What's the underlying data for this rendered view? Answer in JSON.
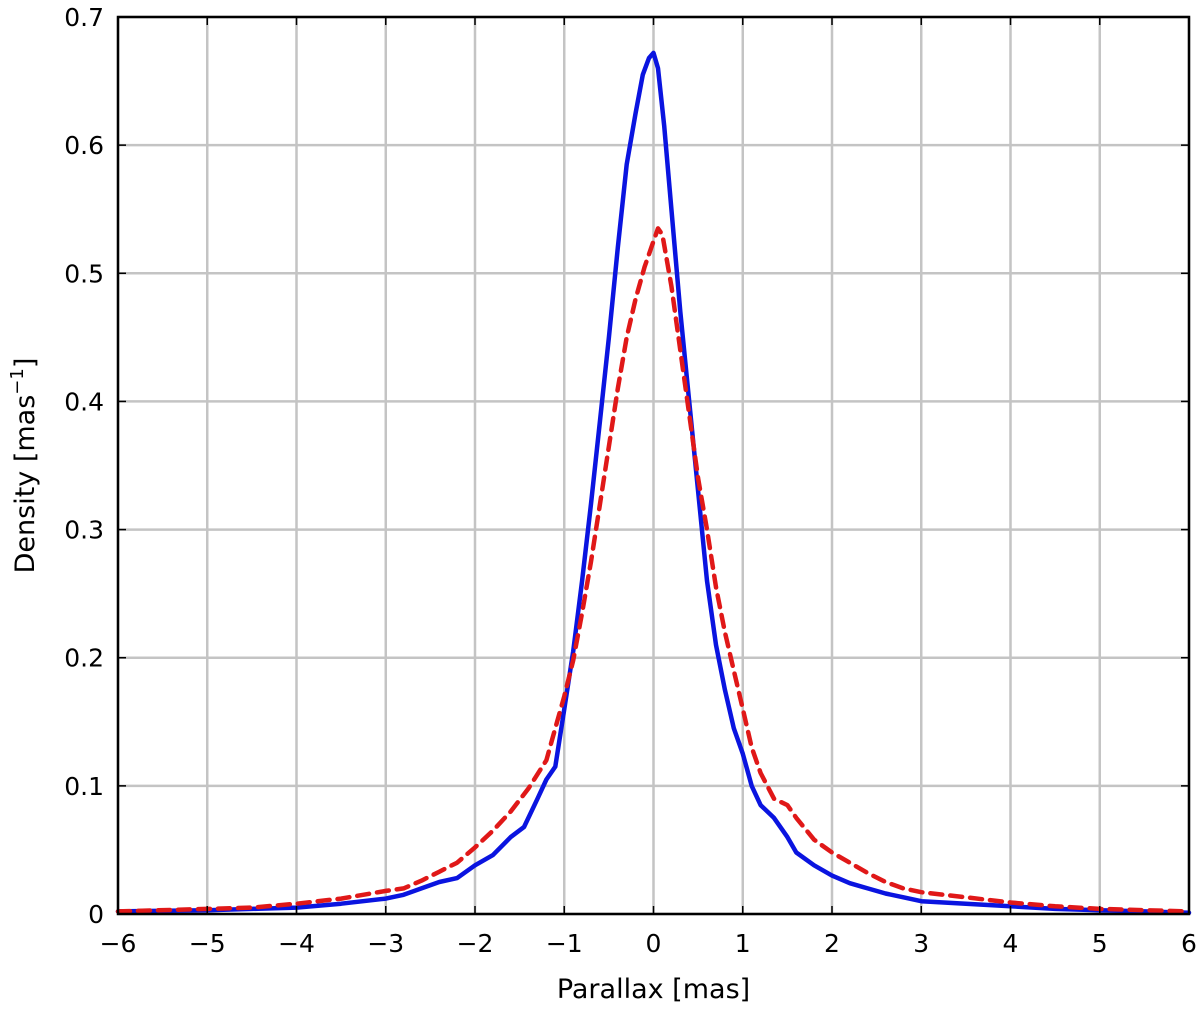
{
  "chart_data": {
    "type": "line",
    "xlabel": "Parallax [mas]",
    "ylabel": "Density [mas",
    "ylabel_superscript": "−1",
    "ylabel_suffix": "]",
    "xlim": [
      -6,
      6
    ],
    "ylim": [
      0,
      0.7
    ],
    "grid": true,
    "x_ticks": [
      -6,
      -5,
      -4,
      -3,
      -2,
      -1,
      0,
      1,
      2,
      3,
      4,
      5,
      6
    ],
    "x_tick_labels": [
      "−6",
      "−5",
      "−4",
      "−3",
      "−2",
      "−1",
      "0",
      "1",
      "2",
      "3",
      "4",
      "5",
      "6"
    ],
    "y_ticks": [
      0,
      0.1,
      0.2,
      0.3,
      0.4,
      0.5,
      0.6,
      0.7
    ],
    "y_tick_labels": [
      "0",
      "0.1",
      "0.2",
      "0.3",
      "0.4",
      "0.5",
      "0.6",
      "0.7"
    ],
    "series": [
      {
        "style": "solid",
        "color": "#0a14e0",
        "x": [
          -6,
          -5,
          -4.5,
          -4,
          -3.5,
          -3,
          -2.8,
          -2.6,
          -2.4,
          -2.2,
          -2.0,
          -1.8,
          -1.6,
          -1.45,
          -1.3,
          -1.2,
          -1.1,
          -1.0,
          -0.9,
          -0.8,
          -0.7,
          -0.6,
          -0.5,
          -0.4,
          -0.3,
          -0.2,
          -0.12,
          -0.05,
          0.0,
          0.05,
          0.12,
          0.2,
          0.3,
          0.4,
          0.5,
          0.6,
          0.7,
          0.8,
          0.9,
          1.0,
          1.1,
          1.2,
          1.35,
          1.5,
          1.6,
          1.8,
          2.0,
          2.2,
          2.4,
          2.6,
          2.8,
          3.0,
          3.5,
          4.0,
          4.5,
          5.0,
          5.5,
          6.0
        ],
        "y": [
          0.002,
          0.003,
          0.004,
          0.005,
          0.008,
          0.012,
          0.015,
          0.02,
          0.025,
          0.028,
          0.038,
          0.046,
          0.06,
          0.068,
          0.09,
          0.105,
          0.115,
          0.16,
          0.205,
          0.26,
          0.32,
          0.385,
          0.45,
          0.52,
          0.585,
          0.625,
          0.655,
          0.668,
          0.672,
          0.66,
          0.615,
          0.55,
          0.47,
          0.4,
          0.33,
          0.26,
          0.21,
          0.175,
          0.145,
          0.125,
          0.1,
          0.085,
          0.075,
          0.06,
          0.048,
          0.038,
          0.03,
          0.024,
          0.02,
          0.016,
          0.013,
          0.01,
          0.008,
          0.006,
          0.004,
          0.003,
          0.002,
          0.001
        ]
      },
      {
        "style": "dashed",
        "color": "#e01818",
        "x": [
          -6,
          -5,
          -4.5,
          -4,
          -3.5,
          -3,
          -2.8,
          -2.6,
          -2.4,
          -2.2,
          -2.0,
          -1.8,
          -1.6,
          -1.4,
          -1.2,
          -1.1,
          -1.0,
          -0.9,
          -0.8,
          -0.7,
          -0.6,
          -0.5,
          -0.4,
          -0.3,
          -0.2,
          -0.1,
          0.0,
          0.05,
          0.1,
          0.2,
          0.3,
          0.4,
          0.5,
          0.6,
          0.7,
          0.8,
          0.9,
          1.0,
          1.1,
          1.2,
          1.35,
          1.5,
          1.6,
          1.8,
          2.0,
          2.2,
          2.4,
          2.6,
          2.8,
          3.0,
          3.5,
          4.0,
          4.5,
          5.0,
          5.5,
          6.0
        ],
        "y": [
          0.002,
          0.004,
          0.005,
          0.008,
          0.012,
          0.018,
          0.02,
          0.026,
          0.033,
          0.04,
          0.052,
          0.065,
          0.08,
          0.098,
          0.12,
          0.145,
          0.17,
          0.198,
          0.235,
          0.275,
          0.32,
          0.365,
          0.41,
          0.45,
          0.48,
          0.505,
          0.525,
          0.535,
          0.53,
          0.49,
          0.44,
          0.39,
          0.34,
          0.3,
          0.255,
          0.22,
          0.19,
          0.16,
          0.13,
          0.11,
          0.09,
          0.085,
          0.075,
          0.058,
          0.048,
          0.04,
          0.032,
          0.025,
          0.02,
          0.017,
          0.013,
          0.009,
          0.006,
          0.004,
          0.003,
          0.002
        ]
      }
    ]
  }
}
